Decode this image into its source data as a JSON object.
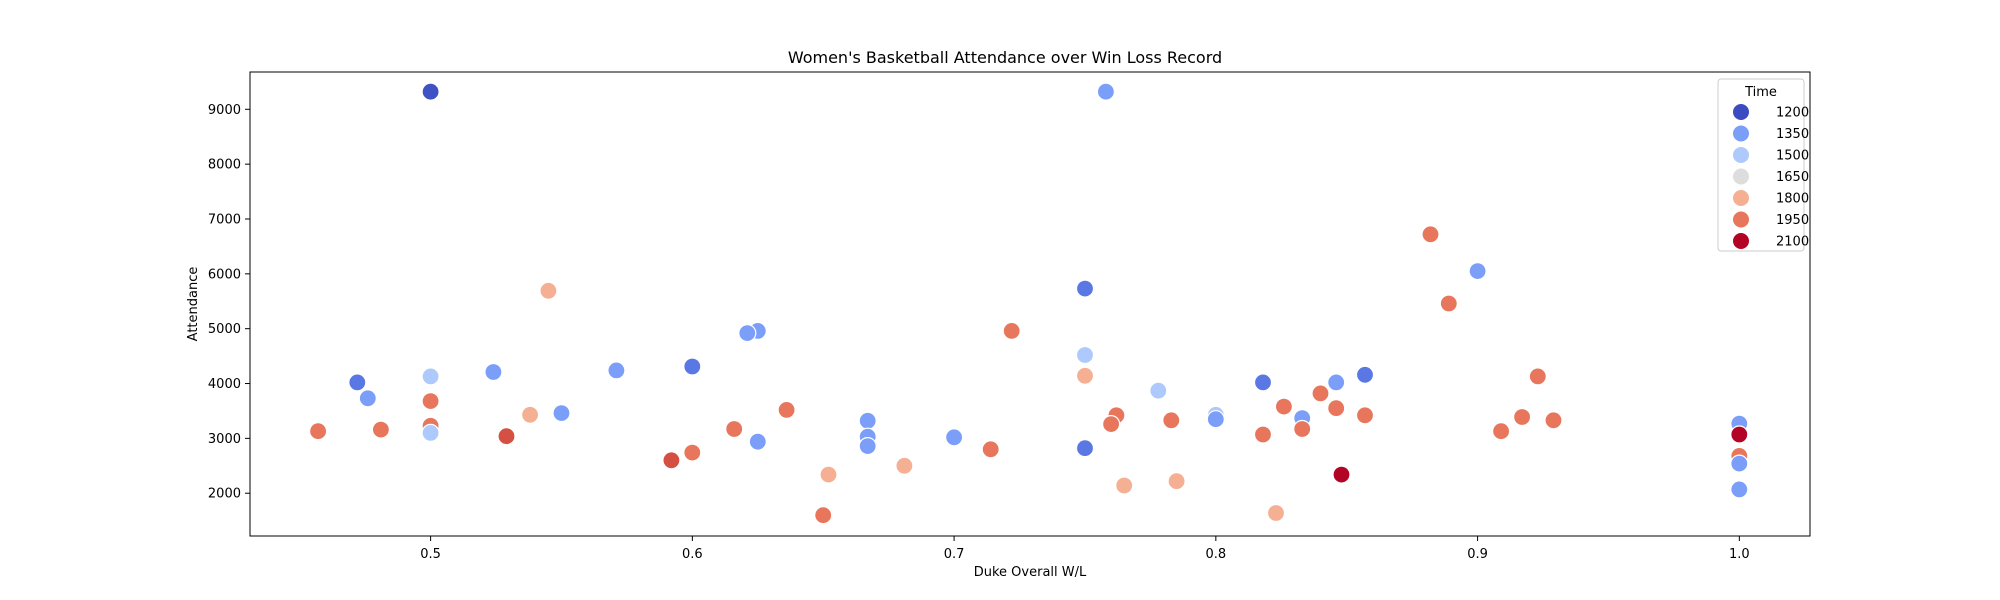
{
  "chart_data": {
    "type": "scatter",
    "title": "Women's Basketball Attendance over Win Loss Record",
    "xlabel": "Duke Overall W/L",
    "ylabel": "Attendance",
    "xlim": [
      0.431,
      1.027
    ],
    "ylim": [
      1220,
      9680
    ],
    "xticks": [
      "0.5",
      "0.6",
      "0.7",
      "0.8",
      "0.9",
      "1.0"
    ],
    "yticks": [
      "2000",
      "3000",
      "4000",
      "5000",
      "6000",
      "7000",
      "8000",
      "9000"
    ],
    "grid": false,
    "legend": {
      "title": "Time",
      "placement": "top-right",
      "entries": [
        {
          "label": "1200",
          "color": "#3b4cc0"
        },
        {
          "label": "1350",
          "color": "#7b9ff9"
        },
        {
          "label": "1500",
          "color": "#aec9fc"
        },
        {
          "label": "1650",
          "color": "#dddddd"
        },
        {
          "label": "1800",
          "color": "#f5b093"
        },
        {
          "label": "1950",
          "color": "#e8765c"
        },
        {
          "label": "2100",
          "color": "#b40426"
        }
      ]
    },
    "points": [
      {
        "x": 0.5,
        "y": 9320,
        "t": 1200,
        "c": "#3e51c5"
      },
      {
        "x": 0.758,
        "y": 9320,
        "t": 1350,
        "c": "#7b9ff9"
      },
      {
        "x": 0.882,
        "y": 6720,
        "t": 1950,
        "c": "#e8765c"
      },
      {
        "x": 0.9,
        "y": 6050,
        "t": 1350,
        "c": "#7b9ff9"
      },
      {
        "x": 0.75,
        "y": 5730,
        "t": 1200,
        "c": "#5a78e4"
      },
      {
        "x": 0.545,
        "y": 5690,
        "t": 1800,
        "c": "#f5b093"
      },
      {
        "x": 0.889,
        "y": 5460,
        "t": 1950,
        "c": "#e8765c"
      },
      {
        "x": 0.722,
        "y": 4960,
        "t": 1950,
        "c": "#e8765c"
      },
      {
        "x": 0.625,
        "y": 4960,
        "t": 1350,
        "c": "#7b9ff9"
      },
      {
        "x": 0.621,
        "y": 4920,
        "t": 1350,
        "c": "#7b9ff9"
      },
      {
        "x": 0.75,
        "y": 4520,
        "t": 1500,
        "c": "#aec9fc"
      },
      {
        "x": 0.6,
        "y": 4310,
        "t": 1200,
        "c": "#5a78e4"
      },
      {
        "x": 0.571,
        "y": 4240,
        "t": 1350,
        "c": "#7b9ff9"
      },
      {
        "x": 0.524,
        "y": 4210,
        "t": 1350,
        "c": "#7b9ff9"
      },
      {
        "x": 0.857,
        "y": 4160,
        "t": 1200,
        "c": "#5a78e4"
      },
      {
        "x": 0.75,
        "y": 4140,
        "t": 1800,
        "c": "#f5b093"
      },
      {
        "x": 0.923,
        "y": 4130,
        "t": 1950,
        "c": "#e8765c"
      },
      {
        "x": 0.5,
        "y": 4130,
        "t": 1500,
        "c": "#aec9fc"
      },
      {
        "x": 0.818,
        "y": 4020,
        "t": 1200,
        "c": "#5a78e4"
      },
      {
        "x": 0.846,
        "y": 4020,
        "t": 1350,
        "c": "#7b9ff9"
      },
      {
        "x": 0.472,
        "y": 4020,
        "t": 1200,
        "c": "#5a78e4"
      },
      {
        "x": 0.778,
        "y": 3870,
        "t": 1500,
        "c": "#aec9fc"
      },
      {
        "x": 0.84,
        "y": 3820,
        "t": 1950,
        "c": "#e8765c"
      },
      {
        "x": 0.476,
        "y": 3730,
        "t": 1350,
        "c": "#7b9ff9"
      },
      {
        "x": 0.5,
        "y": 3680,
        "t": 1950,
        "c": "#e8765c"
      },
      {
        "x": 0.826,
        "y": 3580,
        "t": 1950,
        "c": "#e8765c"
      },
      {
        "x": 0.846,
        "y": 3550,
        "t": 1950,
        "c": "#e8765c"
      },
      {
        "x": 0.636,
        "y": 3520,
        "t": 1950,
        "c": "#e8765c"
      },
      {
        "x": 0.55,
        "y": 3460,
        "t": 1350,
        "c": "#7b9ff9"
      },
      {
        "x": 0.8,
        "y": 3430,
        "t": 1500,
        "c": "#aec9fc"
      },
      {
        "x": 0.538,
        "y": 3430,
        "t": 1800,
        "c": "#f5b093"
      },
      {
        "x": 0.762,
        "y": 3420,
        "t": 1950,
        "c": "#e8765c"
      },
      {
        "x": 0.857,
        "y": 3420,
        "t": 1950,
        "c": "#e8765c"
      },
      {
        "x": 0.917,
        "y": 3390,
        "t": 1950,
        "c": "#e8765c"
      },
      {
        "x": 0.833,
        "y": 3370,
        "t": 1350,
        "c": "#7b9ff9"
      },
      {
        "x": 0.8,
        "y": 3350,
        "t": 1350,
        "c": "#7b9ff9"
      },
      {
        "x": 0.783,
        "y": 3330,
        "t": 1950,
        "c": "#e8765c"
      },
      {
        "x": 0.929,
        "y": 3330,
        "t": 1950,
        "c": "#e8765c"
      },
      {
        "x": 0.667,
        "y": 3320,
        "t": 1350,
        "c": "#7b9ff9"
      },
      {
        "x": 1.0,
        "y": 3270,
        "t": 1350,
        "c": "#7b9ff9"
      },
      {
        "x": 0.76,
        "y": 3260,
        "t": 1950,
        "c": "#e8765c"
      },
      {
        "x": 0.5,
        "y": 3230,
        "t": 1950,
        "c": "#e8765c"
      },
      {
        "x": 0.833,
        "y": 3170,
        "t": 1950,
        "c": "#e8765c"
      },
      {
        "x": 0.616,
        "y": 3170,
        "t": 1950,
        "c": "#e8765c"
      },
      {
        "x": 0.481,
        "y": 3160,
        "t": 1950,
        "c": "#e8765c"
      },
      {
        "x": 0.457,
        "y": 3130,
        "t": 1950,
        "c": "#e8765c"
      },
      {
        "x": 0.909,
        "y": 3130,
        "t": 1950,
        "c": "#e8765c"
      },
      {
        "x": 0.5,
        "y": 3100,
        "t": 1500,
        "c": "#aec9fc"
      },
      {
        "x": 0.818,
        "y": 3070,
        "t": 1950,
        "c": "#e8765c"
      },
      {
        "x": 1.0,
        "y": 3070,
        "t": 2100,
        "c": "#b40426"
      },
      {
        "x": 0.529,
        "y": 3040,
        "t": 1950,
        "c": "#d55042"
      },
      {
        "x": 0.667,
        "y": 3030,
        "t": 1350,
        "c": "#7b9ff9"
      },
      {
        "x": 0.7,
        "y": 3020,
        "t": 1350,
        "c": "#7b9ff9"
      },
      {
        "x": 0.625,
        "y": 2940,
        "t": 1350,
        "c": "#7b9ff9"
      },
      {
        "x": 0.667,
        "y": 2860,
        "t": 1350,
        "c": "#7b9ff9"
      },
      {
        "x": 0.75,
        "y": 2820,
        "t": 1200,
        "c": "#5a78e4"
      },
      {
        "x": 0.714,
        "y": 2800,
        "t": 1950,
        "c": "#e8765c"
      },
      {
        "x": 0.6,
        "y": 2740,
        "t": 1950,
        "c": "#e8765c"
      },
      {
        "x": 1.0,
        "y": 2680,
        "t": 1950,
        "c": "#e8765c"
      },
      {
        "x": 0.592,
        "y": 2600,
        "t": 1950,
        "c": "#d55042"
      },
      {
        "x": 1.0,
        "y": 2540,
        "t": 1350,
        "c": "#7b9ff9"
      },
      {
        "x": 0.681,
        "y": 2500,
        "t": 1800,
        "c": "#f5b093"
      },
      {
        "x": 0.848,
        "y": 2340,
        "t": 2100,
        "c": "#b40426"
      },
      {
        "x": 0.652,
        "y": 2340,
        "t": 1800,
        "c": "#f5b093"
      },
      {
        "x": 0.785,
        "y": 2220,
        "t": 1800,
        "c": "#f5b093"
      },
      {
        "x": 0.765,
        "y": 2140,
        "t": 1800,
        "c": "#f5b093"
      },
      {
        "x": 1.0,
        "y": 2070,
        "t": 1350,
        "c": "#7b9ff9"
      },
      {
        "x": 0.823,
        "y": 1640,
        "t": 1800,
        "c": "#f5b093"
      },
      {
        "x": 0.65,
        "y": 1600,
        "t": 1950,
        "c": "#e8765c"
      }
    ]
  }
}
